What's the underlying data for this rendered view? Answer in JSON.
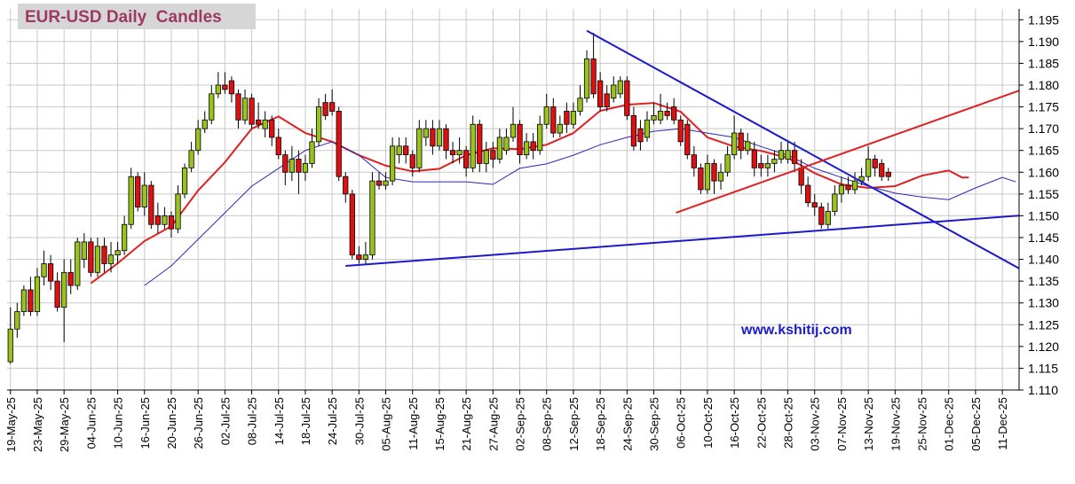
{
  "chart_data": {
    "type": "candlestick",
    "title": "EUR-USD Daily  Candles",
    "annotation": "www.kshitij.com",
    "categories": [
      "19-May-25",
      null,
      null,
      null,
      "23-May-25",
      null,
      null,
      null,
      "29-May-25",
      null,
      null,
      null,
      "04-Jun-25",
      null,
      null,
      null,
      "10-Jun-25",
      null,
      null,
      null,
      "16-Jun-25",
      null,
      null,
      null,
      "20-Jun-25",
      null,
      null,
      null,
      "26-Jun-25",
      null,
      null,
      null,
      "02-Jul-25",
      null,
      null,
      null,
      "08-Jul-25",
      null,
      null,
      null,
      "14-Jul-25",
      null,
      null,
      null,
      "18-Jul-25",
      null,
      null,
      null,
      "24-Jul-25",
      null,
      null,
      null,
      "30-Jul-25",
      null,
      null,
      null,
      "05-Aug-25",
      null,
      null,
      null,
      "11-Aug-25",
      null,
      null,
      null,
      "15-Aug-25",
      null,
      null,
      null,
      "21-Aug-25",
      null,
      null,
      null,
      "27-Aug-25",
      null,
      null,
      null,
      "02-Sep-25",
      null,
      null,
      null,
      "08-Sep-25",
      null,
      null,
      null,
      "12-Sep-25",
      null,
      null,
      null,
      "18-Sep-25",
      null,
      null,
      null,
      "24-Sep-25",
      null,
      null,
      null,
      "30-Sep-25",
      null,
      null,
      null,
      "06-Oct-25",
      null,
      null,
      null,
      "10-Oct-25",
      null,
      null,
      null,
      "16-Oct-25",
      null,
      null,
      null,
      "22-Oct-25",
      null,
      null,
      null,
      "28-Oct-25",
      null,
      null,
      null,
      "03-Nov-25",
      null,
      null,
      null,
      "07-Nov-25",
      null,
      null,
      null,
      "13-Nov-25",
      null,
      null,
      null,
      "19-Nov-25",
      null,
      null,
      null,
      "25-Nov-25",
      null,
      null,
      null,
      "01-Dec-25",
      null,
      null,
      null,
      "05-Dec-25",
      null,
      null,
      null,
      "11-Dec-25"
    ],
    "open": [
      1.1165,
      1.124,
      1.128,
      1.133,
      1.128,
      1.136,
      1.139,
      1.135,
      1.129,
      1.137,
      1.134,
      1.14,
      1.144,
      1.137,
      1.143,
      1.139,
      1.141,
      1.142,
      1.148,
      1.159,
      1.152,
      1.157,
      1.15,
      1.148,
      1.15,
      1.147,
      1.155,
      1.161,
      1.165,
      1.17,
      1.172,
      1.178,
      1.18,
      1.181,
      1.178,
      1.172,
      1.177,
      1.172,
      1.17,
      1.172,
      1.168,
      1.164,
      1.16,
      1.163,
      1.16,
      1.162,
      1.167,
      1.176,
      1.176,
      1.174,
      1.159,
      1.155,
      1.141,
      1.14,
      1.141,
      1.158,
      1.157,
      1.158,
      1.164,
      1.166,
      1.164,
      1.161,
      1.168,
      1.17,
      1.166,
      1.17,
      1.165,
      1.164,
      1.165,
      1.161,
      1.171,
      1.162,
      1.165,
      1.163,
      1.165,
      1.168,
      1.171,
      1.164,
      1.167,
      1.165,
      1.171,
      1.175,
      1.169,
      1.174,
      1.171,
      1.174,
      1.177,
      1.186,
      1.181,
      1.178,
      1.177,
      1.178,
      1.181,
      1.173,
      1.17,
      1.168,
      1.172,
      1.172,
      1.174,
      1.175,
      1.172,
      1.171,
      1.164,
      1.161,
      1.156,
      1.162,
      1.158,
      1.16,
      1.164,
      1.169,
      1.165,
      1.165,
      1.162,
      1.161,
      1.162,
      1.163,
      1.163,
      1.165,
      1.161,
      1.157,
      1.153,
      1.152,
      1.148,
      1.151,
      1.155,
      1.157,
      1.156,
      1.158,
      1.159,
      1.163,
      1.162,
      1.16,
      null,
      null,
      null,
      null,
      null,
      null,
      null,
      null,
      null,
      null,
      null,
      null,
      null,
      null,
      null,
      null,
      null
    ],
    "high": [
      1.129,
      1.13,
      1.134,
      1.136,
      1.138,
      1.142,
      1.141,
      1.137,
      1.14,
      1.14,
      1.145,
      1.146,
      1.145,
      1.145,
      1.145,
      1.144,
      1.144,
      1.15,
      1.161,
      1.16,
      1.16,
      1.158,
      1.153,
      1.152,
      1.151,
      1.157,
      1.162,
      1.167,
      1.172,
      1.174,
      1.18,
      1.183,
      1.183,
      1.182,
      1.179,
      1.179,
      1.178,
      1.176,
      1.174,
      1.173,
      1.17,
      1.165,
      1.166,
      1.165,
      1.164,
      1.17,
      1.177,
      1.178,
      1.179,
      1.175,
      1.16,
      1.156,
      1.143,
      1.144,
      1.16,
      1.16,
      1.16,
      1.168,
      1.168,
      1.168,
      1.165,
      1.172,
      1.172,
      1.172,
      1.172,
      1.171,
      1.167,
      1.168,
      1.166,
      1.173,
      1.172,
      1.167,
      1.167,
      1.17,
      1.17,
      1.175,
      1.172,
      1.169,
      1.169,
      1.173,
      1.178,
      1.177,
      1.173,
      1.176,
      1.176,
      1.18,
      1.188,
      1.192,
      1.183,
      1.18,
      1.182,
      1.182,
      1.182,
      1.175,
      1.172,
      1.174,
      1.176,
      1.178,
      1.176,
      1.177,
      1.173,
      1.172,
      1.166,
      1.162,
      1.164,
      1.163,
      1.162,
      1.166,
      1.173,
      1.17,
      1.169,
      1.167,
      1.164,
      1.164,
      1.165,
      1.167,
      1.167,
      1.167,
      1.163,
      1.159,
      1.155,
      1.153,
      1.153,
      1.157,
      1.159,
      1.159,
      1.16,
      1.161,
      1.166,
      1.164,
      1.163,
      1.161,
      null,
      null,
      null,
      null,
      null,
      null,
      null,
      null,
      null,
      null,
      null,
      null,
      null,
      null,
      null,
      null,
      null
    ],
    "low": [
      1.116,
      1.122,
      1.127,
      1.127,
      1.127,
      1.134,
      1.133,
      1.128,
      1.121,
      1.132,
      1.133,
      1.138,
      1.136,
      1.136,
      1.137,
      1.137,
      1.139,
      1.141,
      1.147,
      1.151,
      1.15,
      1.147,
      1.146,
      1.147,
      1.145,
      1.146,
      1.154,
      1.16,
      1.164,
      1.169,
      1.171,
      1.177,
      1.178,
      1.176,
      1.17,
      1.171,
      1.17,
      1.17,
      1.168,
      1.166,
      1.163,
      1.157,
      1.158,
      1.155,
      1.158,
      1.161,
      1.166,
      1.172,
      1.173,
      1.158,
      1.153,
      1.14,
      1.139,
      1.139,
      1.14,
      1.156,
      1.156,
      1.157,
      1.162,
      1.162,
      1.159,
      1.16,
      1.166,
      1.164,
      1.165,
      1.163,
      1.162,
      1.162,
      1.159,
      1.16,
      1.16,
      1.16,
      1.161,
      1.162,
      1.164,
      1.167,
      1.162,
      1.163,
      1.163,
      1.164,
      1.17,
      1.168,
      1.168,
      1.169,
      1.17,
      1.173,
      1.176,
      1.177,
      1.174,
      1.174,
      1.176,
      1.177,
      1.172,
      1.165,
      1.165,
      1.167,
      1.171,
      1.171,
      1.172,
      1.171,
      1.166,
      1.163,
      1.159,
      1.155,
      1.155,
      1.155,
      1.156,
      1.159,
      1.163,
      1.163,
      1.164,
      1.159,
      1.159,
      1.159,
      1.16,
      1.162,
      1.162,
      1.16,
      1.155,
      1.152,
      1.15,
      1.147,
      1.147,
      1.15,
      1.153,
      1.155,
      1.155,
      1.157,
      1.158,
      1.159,
      1.158,
      1.158,
      null,
      null,
      null,
      null,
      null,
      null,
      null,
      null,
      null,
      null,
      null,
      null,
      null,
      null,
      null,
      null,
      null
    ],
    "close": [
      1.124,
      1.128,
      1.133,
      1.128,
      1.136,
      1.139,
      1.135,
      1.129,
      1.137,
      1.134,
      1.144,
      1.144,
      1.137,
      1.143,
      1.139,
      1.141,
      1.142,
      1.148,
      1.159,
      1.152,
      1.157,
      1.148,
      1.148,
      1.15,
      1.147,
      1.155,
      1.161,
      1.165,
      1.17,
      1.172,
      1.178,
      1.18,
      1.179,
      1.178,
      1.172,
      1.177,
      1.171,
      1.171,
      1.172,
      1.168,
      1.164,
      1.16,
      1.163,
      1.16,
      1.162,
      1.167,
      1.175,
      1.173,
      1.174,
      1.159,
      1.155,
      1.141,
      1.14,
      1.141,
      1.158,
      1.157,
      1.158,
      1.166,
      1.166,
      1.164,
      1.161,
      1.17,
      1.17,
      1.166,
      1.17,
      1.165,
      1.164,
      1.165,
      1.161,
      1.171,
      1.162,
      1.165,
      1.163,
      1.168,
      1.168,
      1.171,
      1.164,
      1.167,
      1.165,
      1.171,
      1.175,
      1.169,
      1.171,
      1.171,
      1.174,
      1.177,
      1.186,
      1.178,
      1.175,
      1.175,
      1.18,
      1.181,
      1.173,
      1.166,
      1.167,
      1.172,
      1.173,
      1.174,
      1.173,
      1.172,
      1.167,
      1.164,
      1.161,
      1.156,
      1.162,
      1.158,
      1.16,
      1.164,
      1.169,
      1.165,
      1.167,
      1.161,
      1.161,
      1.162,
      1.163,
      1.165,
      1.165,
      1.162,
      1.157,
      1.153,
      1.152,
      1.148,
      1.151,
      1.155,
      1.157,
      1.156,
      1.158,
      1.159,
      1.163,
      1.161,
      1.159,
      1.159,
      null,
      null,
      null,
      null,
      null,
      null,
      null,
      null,
      null,
      null,
      null,
      null,
      null,
      null,
      null,
      null,
      null
    ],
    "up_color": "#99c21c",
    "down_color": "#e01010",
    "overlays": [
      {
        "color": "#e02020",
        "x": [
          12,
          16,
          20,
          24,
          28,
          32,
          36,
          40,
          44,
          48,
          52,
          56,
          60,
          64,
          68,
          72,
          76,
          80,
          84,
          88,
          92,
          96,
          100,
          104,
          108,
          112,
          116,
          120,
          124,
          128,
          132,
          136,
          140,
          142,
          143
        ],
        "values": [
          1.1345,
          1.1391,
          1.1442,
          1.1476,
          1.1558,
          1.1623,
          1.17,
          1.1728,
          1.169,
          1.167,
          1.1639,
          1.1615,
          1.1602,
          1.1608,
          1.1639,
          1.1655,
          1.1653,
          1.1663,
          1.169,
          1.1741,
          1.1755,
          1.1759,
          1.1739,
          1.168,
          1.1659,
          1.1649,
          1.1633,
          1.1598,
          1.1572,
          1.1564,
          1.1568,
          1.1592,
          1.1604,
          1.1588,
          1.1588
        ]
      },
      {
        "color": "#2828b8",
        "x": [
          20,
          24,
          28,
          32,
          36,
          40,
          44,
          48,
          52,
          56,
          60,
          64,
          68,
          72,
          76,
          80,
          84,
          88,
          92,
          96,
          100,
          104,
          108,
          112,
          116,
          120,
          124,
          128,
          132,
          136,
          140,
          144,
          148,
          150
        ],
        "values": [
          1.134,
          1.1385,
          1.1446,
          1.1507,
          1.1568,
          1.1609,
          1.165,
          1.167,
          1.1639,
          1.1588,
          1.1578,
          1.1578,
          1.1578,
          1.1572,
          1.1609,
          1.1619,
          1.1639,
          1.1663,
          1.168,
          1.1694,
          1.17,
          1.169,
          1.168,
          1.1659,
          1.1639,
          1.1609,
          1.1588,
          1.1568,
          1.1552,
          1.1543,
          1.1537,
          1.1564,
          1.1588,
          1.1578
        ]
      }
    ],
    "trendlines": [
      {
        "color": "#1a1acc",
        "x": [
          86,
          151
        ],
        "values": [
          1.1925,
          1.1375
        ]
      },
      {
        "color": "#1a1acc",
        "x": [
          50,
          151
        ],
        "values": [
          1.1385,
          1.1501
        ]
      },
      {
        "color": "#e02020",
        "x": [
          99.3,
          151
        ],
        "values": [
          1.1507,
          1.179
        ]
      }
    ],
    "xlim": [
      -0.5,
      150.5
    ],
    "ylim": [
      1.11,
      1.1975
    ],
    "yticks": [
      {
        "value": 1.11,
        "label": "1.110"
      },
      {
        "value": 1.115,
        "label": "1.115"
      },
      {
        "value": 1.12,
        "label": "1.120"
      },
      {
        "value": 1.125,
        "label": "1.125"
      },
      {
        "value": 1.13,
        "label": "1.130"
      },
      {
        "value": 1.135,
        "label": "1.135"
      },
      {
        "value": 1.14,
        "label": "1.140"
      },
      {
        "value": 1.145,
        "label": "1.145"
      },
      {
        "value": 1.15,
        "label": "1.150"
      },
      {
        "value": 1.155,
        "label": "1.155"
      },
      {
        "value": 1.16,
        "label": "1.160"
      },
      {
        "value": 1.165,
        "label": "1.165"
      },
      {
        "value": 1.17,
        "label": "1.170"
      },
      {
        "value": 1.175,
        "label": "1.175"
      },
      {
        "value": 1.18,
        "label": "1.180"
      },
      {
        "value": 1.185,
        "label": "1.185"
      },
      {
        "value": 1.19,
        "label": "1.190"
      },
      {
        "value": 1.195,
        "label": "1.195"
      }
    ],
    "grid": true
  }
}
